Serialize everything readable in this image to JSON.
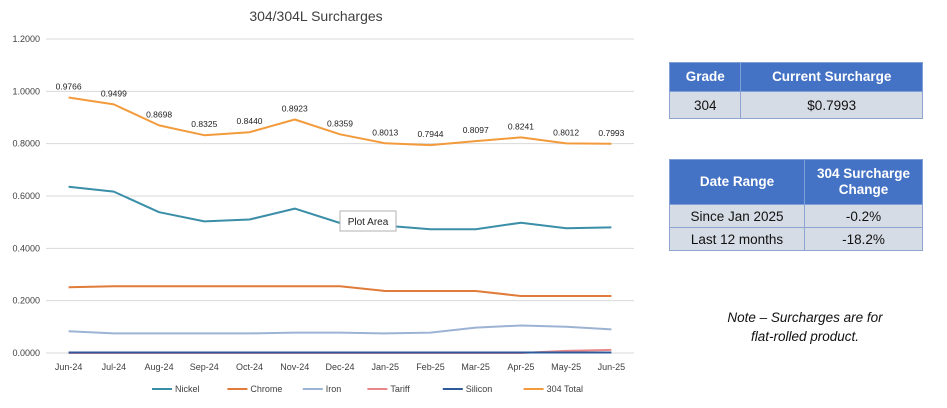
{
  "chart_data": {
    "type": "line",
    "title": "304/304L Surcharges",
    "categories": [
      "Jun-24",
      "Jul-24",
      "Aug-24",
      "Sep-24",
      "Oct-24",
      "Nov-24",
      "Dec-24",
      "Jan-25",
      "Feb-25",
      "Mar-25",
      "Apr-25",
      "May-25",
      "Jun-25"
    ],
    "ylim": [
      0,
      1.2
    ],
    "yticks": [
      "0.0000",
      "0.2000",
      "0.4000",
      "0.6000",
      "0.8000",
      "1.0000",
      "1.2000"
    ],
    "grid": true,
    "legend_position": "bottom",
    "tooltip": "Plot Area",
    "series": [
      {
        "name": "Nickel",
        "color": "#3a8ea8",
        "values": [
          0.635,
          0.617,
          0.538,
          0.503,
          0.51,
          0.552,
          0.497,
          0.487,
          0.473,
          0.473,
          0.498,
          0.477,
          0.48
        ]
      },
      {
        "name": "Chrome",
        "color": "#e07b39",
        "values": [
          0.251,
          0.255,
          0.255,
          0.255,
          0.255,
          0.255,
          0.255,
          0.237,
          0.237,
          0.237,
          0.218,
          0.218,
          0.218
        ]
      },
      {
        "name": "Iron",
        "color": "#9db3d4",
        "values": [
          0.083,
          0.075,
          0.075,
          0.075,
          0.075,
          0.078,
          0.078,
          0.075,
          0.078,
          0.097,
          0.105,
          0.1,
          0.09
        ]
      },
      {
        "name": "Tariff",
        "color": "#e8888a",
        "values": [
          0,
          0,
          0,
          0,
          0,
          0,
          0,
          0,
          0,
          0,
          0,
          0.008,
          0.012
        ]
      },
      {
        "name": "Silicon",
        "color": "#2e5a9c",
        "values": [
          0.002,
          0.002,
          0.002,
          0.002,
          0.002,
          0.002,
          0.002,
          0.002,
          0.002,
          0.002,
          0.002,
          0.002,
          0.002
        ]
      },
      {
        "name": "304 Total",
        "color": "#f39b3c",
        "values": [
          0.9766,
          0.9499,
          0.8698,
          0.8325,
          0.844,
          0.8923,
          0.8359,
          0.8013,
          0.7944,
          0.8097,
          0.8241,
          0.8012,
          0.7993
        ],
        "labels": [
          "0.9766",
          "0.9499",
          "0.8698",
          "0.8325",
          "0.8440",
          "0.8923",
          "0.8359",
          "0.8013",
          "0.7944",
          "0.8097",
          "0.8241",
          "0.8012",
          "0.7993"
        ]
      }
    ]
  },
  "grade_table": {
    "headers": [
      "Grade",
      "Current Surcharge"
    ],
    "row": [
      "304",
      "$0.7993"
    ]
  },
  "range_table": {
    "headers": [
      "Date Range",
      "304 Surcharge Change"
    ],
    "rows": [
      [
        "Since Jan 2025",
        "-0.2%"
      ],
      [
        "Last 12 months",
        "-18.2%"
      ]
    ]
  },
  "note": {
    "line1": "Note – Surcharges are for",
    "line2": "flat-rolled product."
  }
}
